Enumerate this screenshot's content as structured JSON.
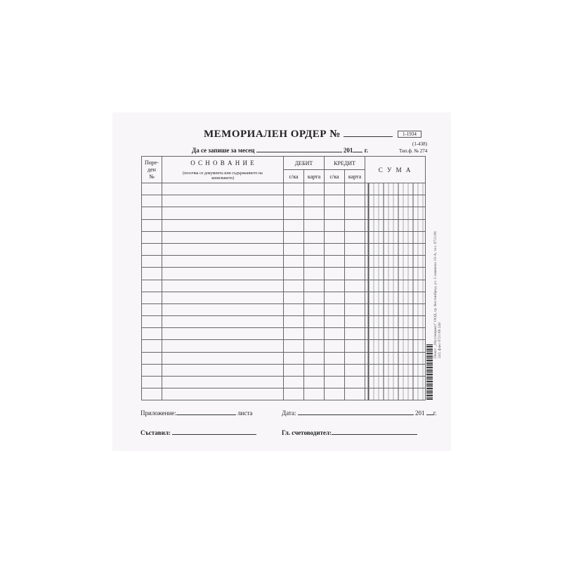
{
  "form": {
    "title": "МЕМОРИАЛЕН ОРДЕР №",
    "form_code": "1-1934",
    "alt_code": "(1-438)",
    "type_label": "Тип.ф. № 274",
    "record_month_label": "Да се запише за месец",
    "year_prefix": "201",
    "year_suffix": "г."
  },
  "table": {
    "col_number": "Поре-\nден\n№",
    "col_basis": "О С Н О В А Н И Е",
    "col_basis_note": "(посочва се документа или съдържанието на записването)",
    "col_debit": "ДЕБИТ",
    "col_credit": "КРЕДИТ",
    "sub_account": "с/ка",
    "sub_card": "карта",
    "col_sum": "С У М А",
    "row_count": 18
  },
  "footer": {
    "attachment_label": "Приложение:",
    "sheets_label": "листа",
    "date_label": "Дата:",
    "year_prefix": "201",
    "year_suffix": "г.",
    "compiled_label": "Съставил:",
    "chief_accountant_label": "Гл. счетоводител:"
  },
  "printer_note": "Печат: „Мултипринт\" ООД, гр. Костинброд, ул. Славянска 10-А, тел. 0721/66 243, факс 0721/66 248"
}
